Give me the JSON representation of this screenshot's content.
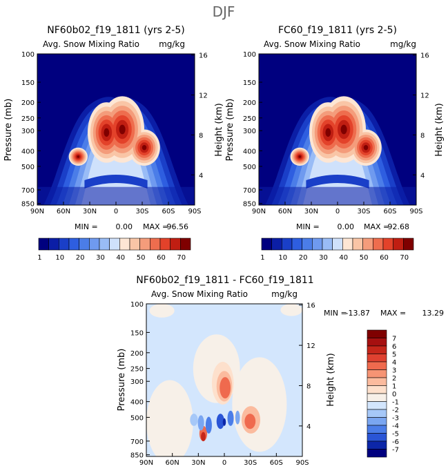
{
  "figure_title": "DJF",
  "chart_data": [
    {
      "type": "heatmap",
      "title": "NF60b02_f19_1811 (yrs 2-5)",
      "subtitle_left": "Avg. Snow Mixing Ratio",
      "subtitle_right": "mg/kg",
      "ylabel": "Pressure (mb)",
      "ylabel_right": "Height (km)",
      "xticks": [
        "90N",
        "60N",
        "30N",
        "0",
        "30S",
        "60S",
        "90S"
      ],
      "yticks": [
        "100",
        "150",
        "200",
        "250",
        "300",
        "400",
        "500",
        "700",
        "850"
      ],
      "yticks_right": [
        "16",
        "12",
        "8",
        "4"
      ],
      "stats": {
        "min_label": "MIN =",
        "min": "0.00",
        "max_label": "MAX =",
        "max": "96.56"
      },
      "levels": [
        1,
        10,
        20,
        30,
        40,
        50,
        60,
        70
      ],
      "peak": 96.56
    },
    {
      "type": "heatmap",
      "title": "FC60_f19_1811 (yrs 2-5)",
      "subtitle_left": "Avg. Snow Mixing Ratio",
      "subtitle_right": "mg/kg",
      "ylabel": "Pressure (mb)",
      "ylabel_right": "Height (km)",
      "xticks": [
        "90N",
        "60N",
        "30N",
        "0",
        "30S",
        "60S",
        "90S"
      ],
      "yticks": [
        "100",
        "150",
        "200",
        "250",
        "300",
        "400",
        "500",
        "700",
        "850"
      ],
      "yticks_right": [
        "16",
        "12",
        "8",
        "4"
      ],
      "stats": {
        "min_label": "MIN =",
        "min": "0.00",
        "max_label": "MAX =",
        "max": "92.68"
      },
      "levels": [
        1,
        10,
        20,
        30,
        40,
        50,
        60,
        70
      ],
      "peak": 92.68
    },
    {
      "type": "heatmap",
      "title": "NF60b02_f19_1811 - FC60_f19_1811",
      "subtitle_left": "Avg. Snow Mixing Ratio",
      "subtitle_right": "mg/kg",
      "ylabel": "Pressure (mb)",
      "ylabel_right": "Height (km)",
      "xticks": [
        "90N",
        "60N",
        "30N",
        "0",
        "30S",
        "60S",
        "90S"
      ],
      "yticks": [
        "100",
        "150",
        "200",
        "250",
        "300",
        "400",
        "500",
        "700",
        "850"
      ],
      "yticks_right": [
        "16",
        "12",
        "8",
        "4"
      ],
      "stats": {
        "min_label": "MIN =",
        "min": "-13.87",
        "max_label": "MAX =",
        "max": "13.29"
      },
      "levels": [
        7,
        6,
        5,
        4,
        3,
        2,
        1,
        0,
        -1,
        -2,
        -3,
        -4,
        -5,
        -6,
        -7
      ]
    }
  ],
  "colors": {
    "seq": [
      "#00007f",
      "#0b1ea6",
      "#1a3fc8",
      "#2e5ee0",
      "#4b7de8",
      "#6f9aef",
      "#99bcf6",
      "#cfe1fb",
      "#fde6d4",
      "#f9c5a6",
      "#f49c7b",
      "#ee6d4e",
      "#e3422a",
      "#c01e12",
      "#7f0000"
    ],
    "div": [
      "#7f0000",
      "#a61010",
      "#c5261a",
      "#df4130",
      "#ef6a4e",
      "#f69474",
      "#fbbb9e",
      "#fde0cc",
      "#f7f0e8",
      "#d3e6fd",
      "#a6c8f8",
      "#7aa6f1",
      "#4b7de8",
      "#2a55d6",
      "#0c26a8",
      "#00007f"
    ]
  }
}
